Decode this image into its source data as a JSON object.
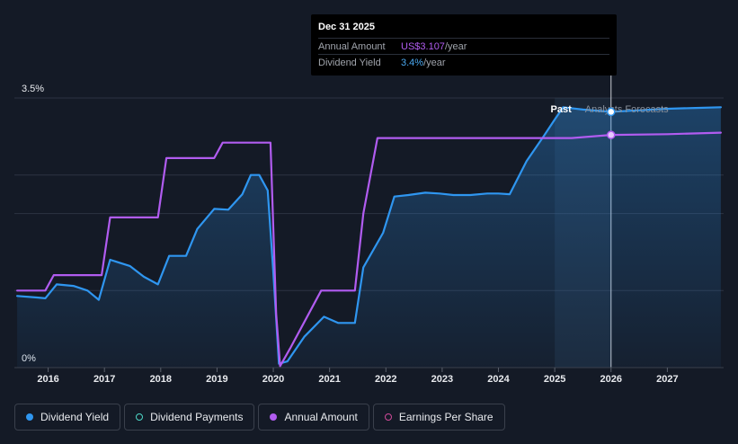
{
  "colors": {
    "yield": "#2f96f0",
    "amount": "#b15cf0",
    "payments": "#4ed8c8",
    "eps": "#d04a9a",
    "background": "#141a26"
  },
  "tooltip": {
    "date": "Dec 31 2025",
    "annual_label": "Annual Amount",
    "annual_value": "US$3.107",
    "annual_unit": "/year",
    "yield_label": "Dividend Yield",
    "yield_value": "3.4%",
    "yield_unit": "/year"
  },
  "legend": [
    {
      "label": "Dividend Yield",
      "icon": "filled-dot-icon"
    },
    {
      "label": "Dividend Payments",
      "icon": "ring-dot-icon"
    },
    {
      "label": "Annual Amount",
      "icon": "filled-dot-icon"
    },
    {
      "label": "Earnings Per Share",
      "icon": "ring-dot-icon"
    }
  ],
  "chart_data": {
    "type": "line",
    "title": "",
    "xlabel": "",
    "ylabel": "",
    "xlim": [
      2015.4,
      2028.0
    ],
    "ylim": [
      0,
      3.5
    ],
    "y_tick_labels": [
      {
        "value": 3.5,
        "label": "3.5%"
      },
      {
        "value": 0,
        "label": "0%"
      }
    ],
    "x_ticks": [
      2016,
      2017,
      2018,
      2019,
      2020,
      2021,
      2022,
      2023,
      2024,
      2025,
      2026,
      2027
    ],
    "x_tick_labels": [
      "2016",
      "2017",
      "2018",
      "2019",
      "2020",
      "2021",
      "2022",
      "2023",
      "2024",
      "2025",
      "2026",
      "2027"
    ],
    "past_label": "Past",
    "forecast_label": "Analysts Forecasts",
    "forecast_start": 2025.0,
    "tooltip_x": 2026.0,
    "series": [
      {
        "name": "Dividend Yield",
        "area": true,
        "points": [
          [
            2015.45,
            0.93
          ],
          [
            2015.8,
            0.91
          ],
          [
            2015.95,
            0.9
          ],
          [
            2016.15,
            1.08
          ],
          [
            2016.45,
            1.06
          ],
          [
            2016.7,
            1.0
          ],
          [
            2016.9,
            0.88
          ],
          [
            2017.1,
            1.4
          ],
          [
            2017.45,
            1.32
          ],
          [
            2017.7,
            1.18
          ],
          [
            2017.95,
            1.08
          ],
          [
            2018.15,
            1.45
          ],
          [
            2018.45,
            1.45
          ],
          [
            2018.65,
            1.8
          ],
          [
            2018.95,
            2.06
          ],
          [
            2019.2,
            2.05
          ],
          [
            2019.45,
            2.25
          ],
          [
            2019.6,
            2.5
          ],
          [
            2019.75,
            2.5
          ],
          [
            2019.9,
            2.3
          ],
          [
            2020.0,
            1.25
          ],
          [
            2020.1,
            0.05
          ],
          [
            2020.25,
            0.08
          ],
          [
            2020.55,
            0.4
          ],
          [
            2020.9,
            0.66
          ],
          [
            2021.15,
            0.58
          ],
          [
            2021.45,
            0.58
          ],
          [
            2021.6,
            1.3
          ],
          [
            2021.95,
            1.75
          ],
          [
            2022.15,
            2.22
          ],
          [
            2022.4,
            2.24
          ],
          [
            2022.7,
            2.27
          ],
          [
            2022.95,
            2.26
          ],
          [
            2023.2,
            2.24
          ],
          [
            2023.5,
            2.24
          ],
          [
            2023.8,
            2.26
          ],
          [
            2024.0,
            2.26
          ],
          [
            2024.2,
            2.25
          ],
          [
            2024.5,
            2.68
          ],
          [
            2024.8,
            3.0
          ],
          [
            2025.0,
            3.22
          ],
          [
            2025.15,
            3.38
          ],
          [
            2025.5,
            3.35
          ],
          [
            2026.0,
            3.32
          ],
          [
            2026.5,
            3.34
          ],
          [
            2027.0,
            3.36
          ],
          [
            2027.5,
            3.37
          ],
          [
            2027.95,
            3.38
          ]
        ]
      },
      {
        "name": "Annual Amount",
        "area": false,
        "points": [
          [
            2015.45,
            1.0
          ],
          [
            2015.95,
            1.0
          ],
          [
            2016.1,
            1.2
          ],
          [
            2016.95,
            1.2
          ],
          [
            2017.1,
            1.95
          ],
          [
            2017.95,
            1.95
          ],
          [
            2018.1,
            2.72
          ],
          [
            2018.95,
            2.72
          ],
          [
            2019.1,
            2.92
          ],
          [
            2019.95,
            2.92
          ],
          [
            2020.05,
            0.7
          ],
          [
            2020.12,
            0.02
          ],
          [
            2020.3,
            0.25
          ],
          [
            2020.85,
            1.0
          ],
          [
            2021.45,
            1.0
          ],
          [
            2021.6,
            2.0
          ],
          [
            2021.85,
            2.98
          ],
          [
            2022.5,
            2.98
          ],
          [
            2023.5,
            2.98
          ],
          [
            2024.5,
            2.98
          ],
          [
            2025.0,
            2.98
          ],
          [
            2025.3,
            2.98
          ],
          [
            2026.0,
            3.02
          ],
          [
            2027.0,
            3.03
          ],
          [
            2027.95,
            3.05
          ]
        ]
      }
    ]
  }
}
